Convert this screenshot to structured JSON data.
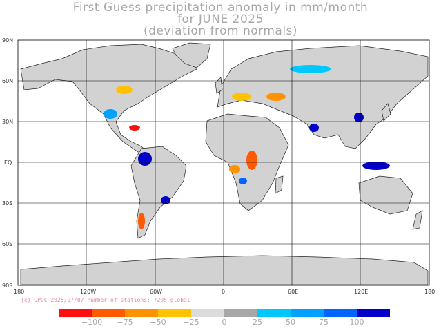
{
  "title": {
    "line1": "First Guess precipitation anomaly in mm/month",
    "line2": "for JUNE 2025",
    "line3": "(deviation from normals)"
  },
  "axes": {
    "lat_labels": [
      "90N",
      "60N",
      "30N",
      "EQ",
      "30S",
      "60S",
      "90S"
    ],
    "lon_labels": [
      "180",
      "120W",
      "60W",
      "0",
      "60E",
      "120E",
      "180"
    ]
  },
  "credit": "(c) GPCC 2025/07/07 number of stations: 7205 global",
  "legend": {
    "colors": [
      "#ff1010",
      "#ff5a00",
      "#ff9200",
      "#ffc200",
      "#dcdcdc",
      "#a8a8a8",
      "#00c8ff",
      "#00a0ff",
      "#0064ff",
      "#0000c8"
    ],
    "labels": [
      "−100",
      "−75",
      "−50",
      "−25",
      "0",
      "25",
      "50",
      "75",
      "100"
    ]
  },
  "colors": {
    "land": "#d4d4d4",
    "coast": "#222222",
    "grid": "#000000"
  }
}
